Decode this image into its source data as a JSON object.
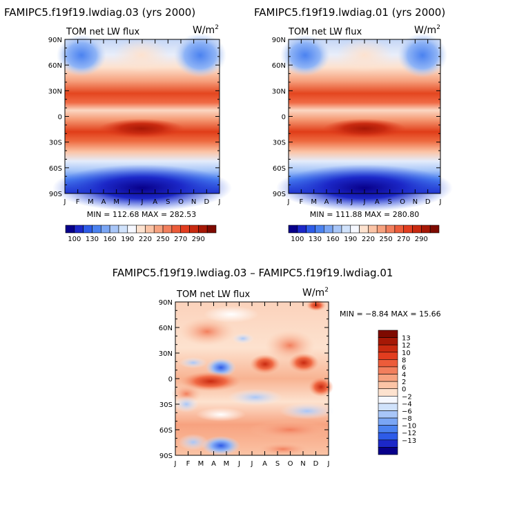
{
  "chart_data": [
    {
      "type": "heatmap",
      "title": "FAMIPC5.f19f19.lwdiag.03 (yrs 2000)",
      "subtitle_left": "TOM net LW flux",
      "units": "W/m",
      "units_exp": "2",
      "x_ticks": [
        "J",
        "F",
        "M",
        "A",
        "M",
        "J",
        "J",
        "A",
        "S",
        "O",
        "N",
        "D",
        "J"
      ],
      "y_ticks": [
        "90N",
        "60N",
        "30N",
        "0",
        "30S",
        "60S",
        "90S"
      ],
      "ylim": [
        -90,
        90
      ],
      "stats_text": "MIN = 112.68   MAX = 282.53",
      "colorbar_labels": [
        "100",
        "130",
        "160",
        "190",
        "220",
        "250",
        "270",
        "290"
      ],
      "colors": [
        "#08008a",
        "#1c28c8",
        "#2e5ce8",
        "#4b82f0",
        "#7aa6f5",
        "#a8c6f8",
        "#d0e2fb",
        "#f6f8ff",
        "#fde2cf",
        "#fbc4a6",
        "#f7a27f",
        "#f27f5d",
        "#ec5c3a",
        "#e23d1f",
        "#c92a10",
        "#a61806",
        "#7e0a00"
      ]
    },
    {
      "type": "heatmap",
      "title": "FAMIPC5.f19f19.lwdiag.01 (yrs 2000)",
      "subtitle_left": "TOM net LW flux",
      "units": "W/m",
      "units_exp": "2",
      "x_ticks": [
        "J",
        "F",
        "M",
        "A",
        "M",
        "J",
        "J",
        "A",
        "S",
        "O",
        "N",
        "D",
        "J"
      ],
      "y_ticks": [
        "90N",
        "60N",
        "30N",
        "0",
        "30S",
        "60S",
        "90S"
      ],
      "ylim": [
        -90,
        90
      ],
      "stats_text": "MIN = 111.88   MAX = 280.80",
      "colorbar_labels": [
        "100",
        "130",
        "160",
        "190",
        "220",
        "250",
        "270",
        "290"
      ],
      "colors": [
        "#08008a",
        "#1c28c8",
        "#2e5ce8",
        "#4b82f0",
        "#7aa6f5",
        "#a8c6f8",
        "#d0e2fb",
        "#f6f8ff",
        "#fde2cf",
        "#fbc4a6",
        "#f7a27f",
        "#f27f5d",
        "#ec5c3a",
        "#e23d1f",
        "#c92a10",
        "#a61806",
        "#7e0a00"
      ]
    },
    {
      "type": "heatmap",
      "title": "FAMIPC5.f19f19.lwdiag.03 – FAMIPC5.f19f19.lwdiag.01",
      "subtitle_left": "TOM net LW flux",
      "units": "W/m",
      "units_exp": "2",
      "x_ticks": [
        "J",
        "F",
        "M",
        "A",
        "M",
        "J",
        "J",
        "A",
        "S",
        "O",
        "N",
        "D",
        "J"
      ],
      "y_ticks": [
        "90N",
        "60N",
        "30N",
        "0",
        "30S",
        "60S",
        "90S"
      ],
      "ylim": [
        -90,
        90
      ],
      "stats_text": "MIN =   −8.84 MAX =   15.66",
      "colorbar_labels": [
        "13",
        "12",
        "10",
        "8",
        "6",
        "4",
        "2",
        "0",
        "−2",
        "−4",
        "−6",
        "−8",
        "−10",
        "−12",
        "−13"
      ],
      "colors": [
        "#7e0a00",
        "#a61806",
        "#c92a10",
        "#e23d1f",
        "#ec5c3a",
        "#f27f5d",
        "#f7a27f",
        "#fbc4a6",
        "#fde2cf",
        "#f6f8ff",
        "#d0e2fb",
        "#a8c6f8",
        "#7aa6f5",
        "#4b82f0",
        "#2e5ce8",
        "#1c28c8",
        "#08008a"
      ]
    }
  ]
}
